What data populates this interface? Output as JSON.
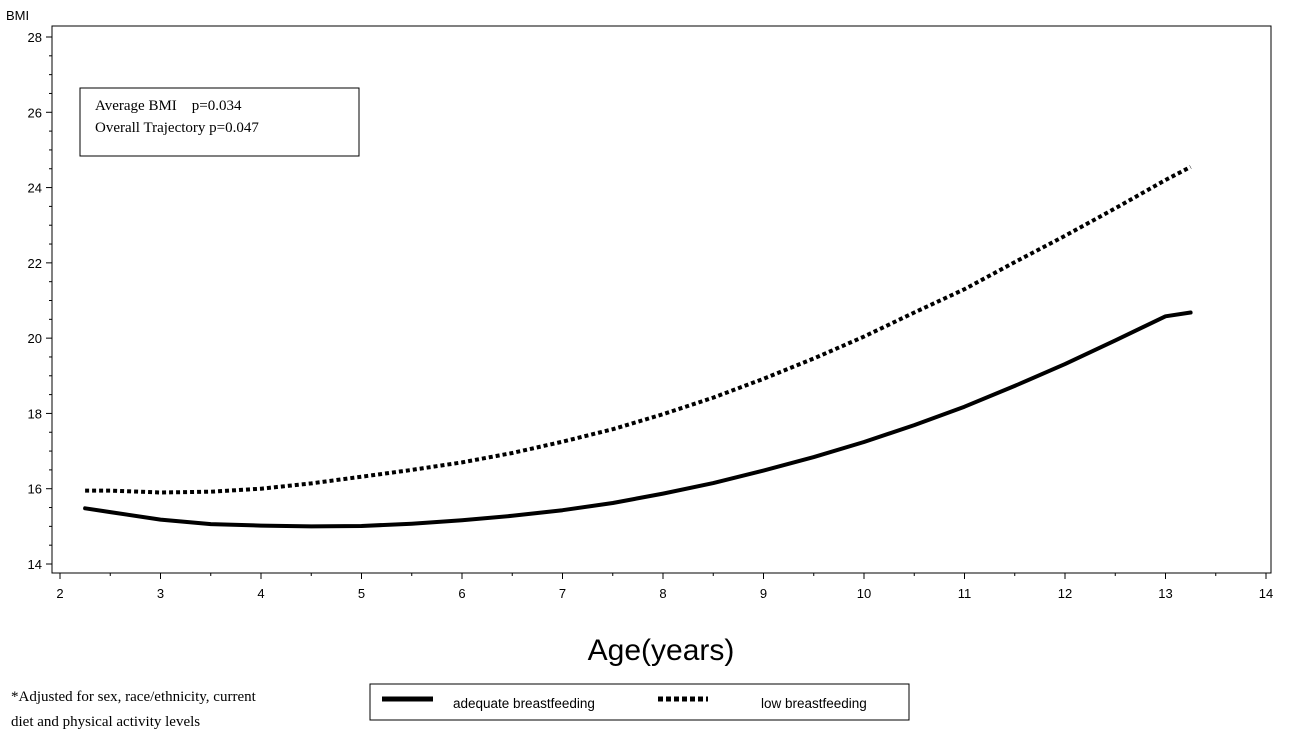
{
  "chart_data": {
    "type": "line",
    "title": "",
    "xlabel": "Age(years)",
    "ylabel": "BMI",
    "xlim": [
      2,
      14
    ],
    "ylim": [
      14,
      28
    ],
    "xticks": [
      2,
      3,
      4,
      5,
      6,
      7,
      8,
      9,
      10,
      11,
      12,
      13,
      14
    ],
    "yticks": [
      14,
      16,
      18,
      20,
      22,
      24,
      26,
      28
    ],
    "grid": false,
    "legend_position": "bottom",
    "annotation": {
      "line1": "Average BMI    p=0.034",
      "line2": "Overall Trajectory p=0.047"
    },
    "footnote": {
      "line1": "*Adjusted for sex, race/ethnicity, current",
      "line2": "diet and physical activity levels"
    },
    "series": [
      {
        "name": "adequate breastfeeding",
        "style": "solid",
        "color": "#000000",
        "x": [
          2.25,
          2.5,
          3,
          3.5,
          4,
          4.5,
          5,
          5.5,
          6,
          6.5,
          7,
          7.5,
          8,
          8.5,
          9,
          9.5,
          10,
          10.5,
          11,
          11.5,
          12,
          12.5,
          13,
          13.25
        ],
        "y": [
          15.48,
          15.38,
          15.18,
          15.06,
          15.02,
          15.0,
          15.01,
          15.07,
          15.16,
          15.28,
          15.43,
          15.62,
          15.87,
          16.15,
          16.48,
          16.84,
          17.24,
          17.69,
          18.18,
          18.73,
          19.31,
          19.94,
          20.58,
          20.68
        ]
      },
      {
        "name": "low breastfeeding",
        "style": "dotted",
        "color": "#000000",
        "x": [
          2.25,
          2.5,
          3,
          3.5,
          4,
          4.5,
          5,
          5.5,
          6,
          6.5,
          7,
          7.5,
          8,
          8.5,
          9,
          9.5,
          10,
          10.5,
          11,
          11.5,
          12,
          12.5,
          13,
          13.25
        ],
        "y": [
          15.95,
          15.95,
          15.9,
          15.92,
          16.0,
          16.14,
          16.32,
          16.5,
          16.7,
          16.95,
          17.25,
          17.58,
          17.98,
          18.42,
          18.92,
          19.46,
          20.04,
          20.68,
          21.3,
          22.02,
          22.72,
          23.45,
          24.2,
          24.55
        ]
      }
    ]
  }
}
